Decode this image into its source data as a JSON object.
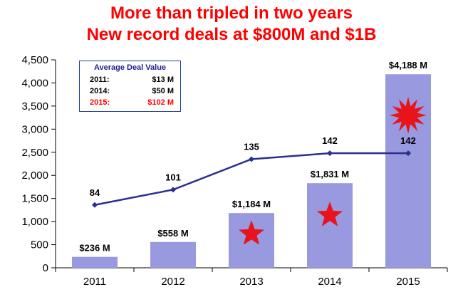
{
  "title_line1": "More than tripled in two years",
  "title_line2": "New record deals at $800M and $1B",
  "colors": {
    "title": "#ff0000",
    "bar": "#9999e0",
    "line": "#2b2f8f",
    "star": "#e8141c"
  },
  "legend": {
    "heading": "Average Deal Value",
    "rows": [
      {
        "year": "2011:",
        "value": "$13 M",
        "color": "#000000"
      },
      {
        "year": "2014:",
        "value": "$50 M",
        "color": "#000000"
      },
      {
        "year": "2015:",
        "value": "$102 M",
        "color": "#ff0000"
      }
    ]
  },
  "chart_data": {
    "type": "bar",
    "categories": [
      "2011",
      "2012",
      "2013",
      "2014",
      "2015"
    ],
    "series": [
      {
        "type": "bar",
        "values": [
          236,
          558,
          1184,
          1831,
          4188
        ],
        "labels": [
          "$236 M",
          "$558 M",
          "$1,184 M",
          "$1,831 M",
          "$4,188 M"
        ]
      },
      {
        "type": "line",
        "values": [
          84,
          101,
          135,
          142,
          142
        ],
        "labels": [
          "84",
          "101",
          "135",
          "142",
          "142"
        ],
        "plotted_at": [
          1360,
          1690,
          2350,
          2480,
          2480
        ]
      }
    ],
    "yticks": [
      0,
      500,
      1000,
      1500,
      2000,
      2500,
      3000,
      3500,
      4000,
      4500
    ],
    "ytick_labels": [
      "0",
      "500",
      "1,000",
      "1,500",
      "2,000",
      "2,500",
      "3,000",
      "3,500",
      "4,000",
      "4,500"
    ],
    "ylim": [
      0,
      4500
    ],
    "grid": false,
    "legend_position": "top-left",
    "markers": [
      {
        "category": "2013",
        "shape": "star"
      },
      {
        "category": "2014",
        "shape": "star"
      },
      {
        "category": "2015",
        "shape": "burst"
      }
    ]
  }
}
